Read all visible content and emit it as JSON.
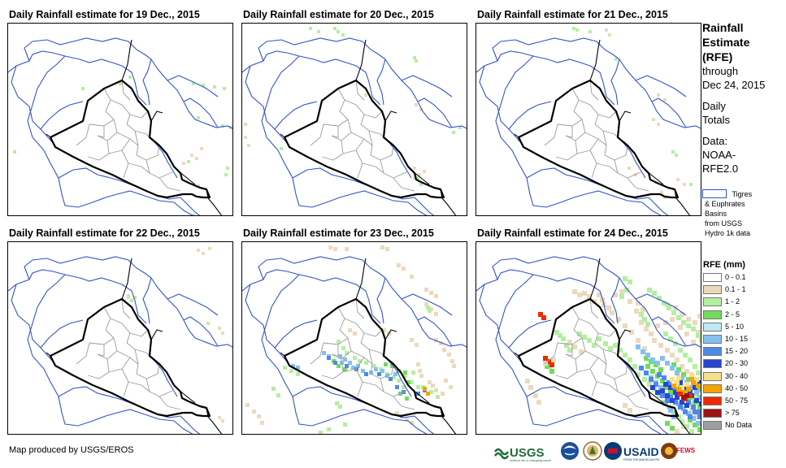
{
  "panels": [
    {
      "title": "Daily Rainfall estimate for 19 Dec., 2015"
    },
    {
      "title": "Daily Rainfall estimate for 20 Dec., 2015"
    },
    {
      "title": "Daily Rainfall estimate for 21 Dec., 2015"
    },
    {
      "title": "Daily Rainfall estimate for 22 Dec., 2015"
    },
    {
      "title": "Daily Rainfall estimate for 23 Dec., 2015"
    },
    {
      "title": "Daily Rainfall estimate for 24 Dec., 2015"
    }
  ],
  "legend": {
    "title_lines": [
      "Rainfall",
      "Estimate",
      "(RFE)"
    ],
    "through_lines": [
      "through",
      "Dec 24, 2015"
    ],
    "daily_lines": [
      "Daily",
      "Totals"
    ],
    "data_lines": [
      "Data:",
      "NOAA-",
      "RFE2.0"
    ],
    "basins_lines": [
      "Tigres",
      "& Euphrates",
      "Basins",
      "from USGS",
      "Hydro 1k data"
    ],
    "basin_color": "#2f4fd0",
    "rfe_title": "RFE (mm)",
    "classes": [
      {
        "label": "0 - 0.1",
        "color": "#ffffff"
      },
      {
        "label": "0.1 - 1",
        "color": "#ecd9bd"
      },
      {
        "label": "1 - 2",
        "color": "#b3efa1"
      },
      {
        "label": "2 - 5",
        "color": "#6fdc5a"
      },
      {
        "label": "5 - 10",
        "color": "#bfe8f5"
      },
      {
        "label": "10 - 15",
        "color": "#86bff0"
      },
      {
        "label": "15 - 20",
        "color": "#4d8ae8"
      },
      {
        "label": "20 - 30",
        "color": "#2546d2"
      },
      {
        "label": "30 - 40",
        "color": "#f7e08c"
      },
      {
        "label": "40 - 50",
        "color": "#f5a300"
      },
      {
        "label": "50 - 75",
        "color": "#ee2a00"
      },
      {
        "label": "> 75",
        "color": "#9d1414"
      },
      {
        "label": "No Data",
        "color": "#9e9e9e"
      }
    ]
  },
  "credit": "Map produced by USGS/EROS",
  "logos": [
    "USGS",
    "NOAA",
    "DOI",
    "USAID",
    "FEWS NET"
  ]
}
